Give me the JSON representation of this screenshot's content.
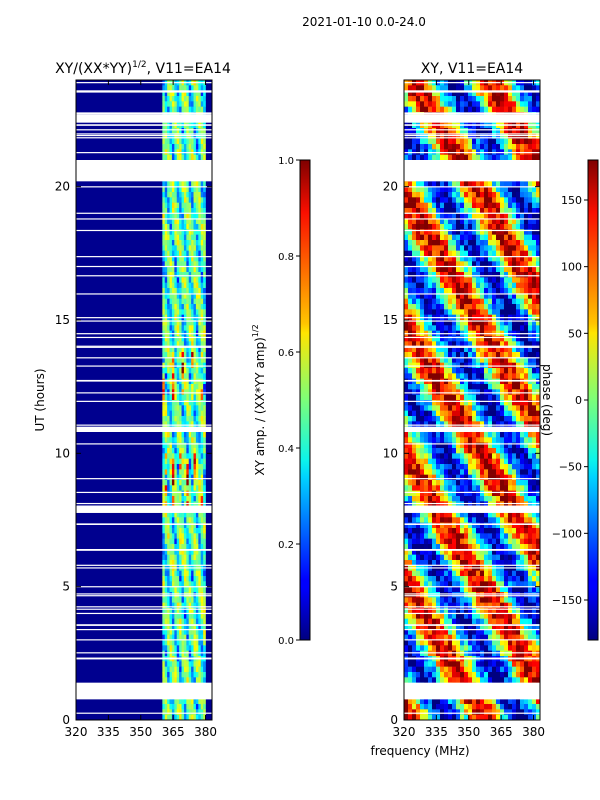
{
  "suptitle": "2021-01-10 0.0-24.0",
  "xlabel_shared": "frequency (MHz)",
  "chart_data": [
    {
      "type": "heatmap",
      "title": "XY/(XX*YY)^{1/2}, V11=EA14",
      "title_parts": {
        "pre": "XY/(XX*YY)",
        "sup": "1/2",
        "post": ", V11=EA14"
      },
      "xlabel": "",
      "ylabel": "UT (hours)",
      "xlim": [
        320,
        383
      ],
      "ylim": [
        0,
        24
      ],
      "xticks": [
        320,
        335,
        350,
        365,
        380
      ],
      "yticks": [
        0,
        5,
        10,
        15,
        20
      ],
      "colorbar": {
        "label_pre": "XY amp. / (XX*YY amp)",
        "label_sup": "1/2",
        "range": [
          0.0,
          1.0
        ],
        "ticks": [
          "0.0",
          "0.2",
          "0.4",
          "0.6",
          "0.8",
          "1.0"
        ]
      },
      "flagged_ut_hours": [
        [
          0.8,
          1.4
        ],
        [
          7.8,
          8.0
        ],
        [
          10.8,
          11.0
        ],
        [
          20.2,
          21.0
        ],
        [
          22.4,
          22.7
        ]
      ],
      "band_mhz": [
        360,
        380
      ]
    },
    {
      "type": "heatmap",
      "title": "XY, V11=EA14",
      "xlabel": "",
      "ylabel": "",
      "xlim": [
        320,
        383
      ],
      "ylim": [
        0,
        24
      ],
      "xticks": [
        320,
        335,
        350,
        365,
        380
      ],
      "yticks": [
        0,
        5,
        10,
        15,
        20
      ],
      "colorbar": {
        "label": "phase (deg)",
        "range": [
          -180,
          180
        ],
        "ticks": [
          "−150",
          "−100",
          "−50",
          "0",
          "50",
          "100",
          "150"
        ],
        "tick_values": [
          -150,
          -100,
          -50,
          0,
          50,
          100,
          150
        ]
      },
      "flagged_ut_hours": [
        [
          0.8,
          1.4
        ],
        [
          7.8,
          8.0
        ],
        [
          10.8,
          11.0
        ],
        [
          20.2,
          21.0
        ],
        [
          22.4,
          22.7
        ]
      ]
    }
  ]
}
